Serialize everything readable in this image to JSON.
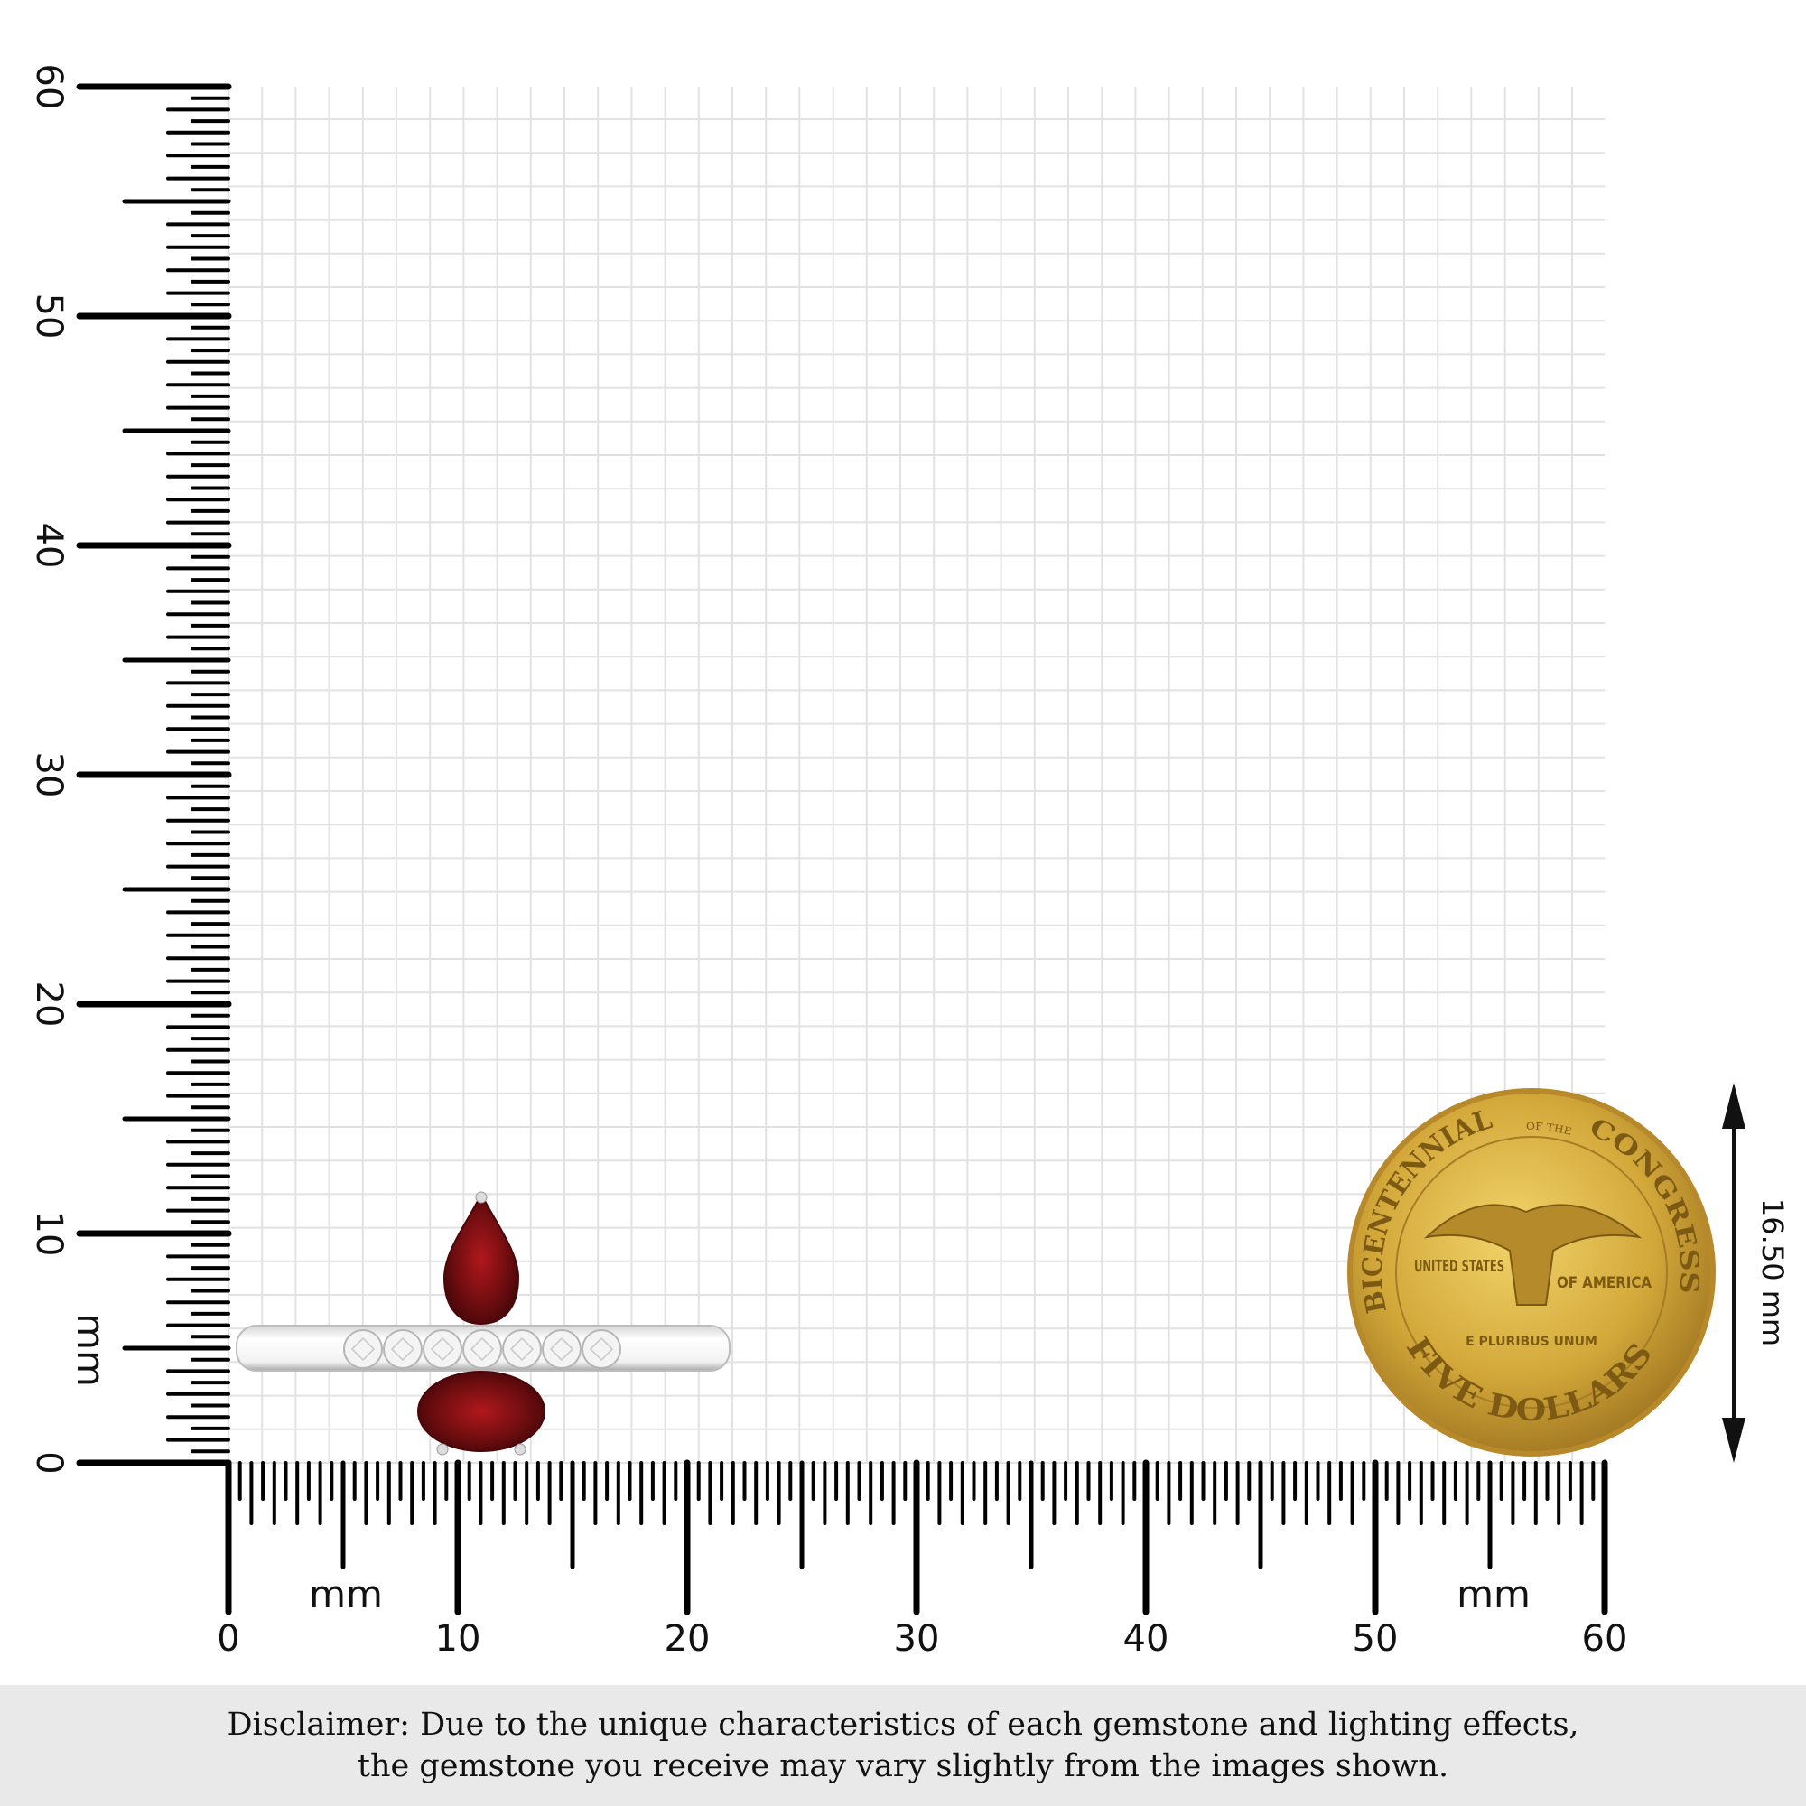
{
  "rulers": {
    "unit_label": "mm",
    "x_ticks": [
      "0",
      "10",
      "20",
      "30",
      "40",
      "50",
      "60"
    ],
    "y_ticks": [
      "0",
      "10",
      "20",
      "30",
      "40",
      "50",
      "60"
    ],
    "range_mm": [
      0,
      60
    ]
  },
  "coin": {
    "top_text": "BICENTENNIAL",
    "of_the": "OF THE",
    "congress": "CONGRESS",
    "left_text": "UNITED STATES",
    "right_text": "OF AMERICA",
    "motto": "E PLURIBUS UNUM",
    "bottom_text": "FIVE DOLLARS",
    "diameter_label": "16.50 mm",
    "color": "#c9a133"
  },
  "gem_color": "#7a0f12",
  "disclaimer": {
    "line1": "Disclaimer: Due to the unique characteristics of each gemstone and lighting effects,",
    "line2": "the gemstone you receive may vary slightly from the images shown."
  }
}
